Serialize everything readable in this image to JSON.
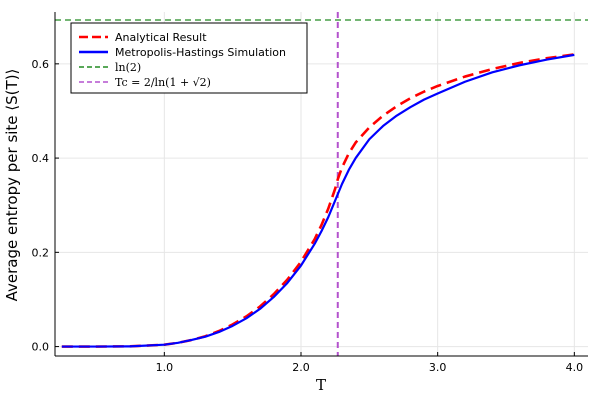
{
  "chart_data": {
    "type": "line",
    "xlabel": "T",
    "ylabel": "Average entropy per site ⟨S(T)⟩",
    "xlim": [
      0.2,
      4.1
    ],
    "ylim": [
      -0.02,
      0.71
    ],
    "xticks": [
      1.0,
      2.0,
      3.0,
      4.0
    ],
    "xtick_labels": [
      "1.0",
      "2.0",
      "3.0",
      "4.0"
    ],
    "yticks": [
      0.0,
      0.2,
      0.4,
      0.6
    ],
    "ytick_labels": [
      "0.0",
      "0.2",
      "0.4",
      "0.6"
    ],
    "grid": true,
    "legend_position": "top-left",
    "series": [
      {
        "name": "Analytical Result",
        "color": "#ff0000",
        "style": "dashed",
        "x": [
          0.25,
          0.5,
          0.75,
          1.0,
          1.1,
          1.2,
          1.3,
          1.4,
          1.5,
          1.6,
          1.7,
          1.8,
          1.9,
          2.0,
          2.1,
          2.15,
          2.2,
          2.25,
          2.269,
          2.3,
          2.35,
          2.4,
          2.5,
          2.6,
          2.7,
          2.8,
          2.9,
          3.0,
          3.2,
          3.4,
          3.6,
          3.8,
          4.0
        ],
        "y": [
          0.0,
          0.0,
          0.0005,
          0.004,
          0.008,
          0.014,
          0.022,
          0.033,
          0.047,
          0.064,
          0.085,
          0.111,
          0.142,
          0.18,
          0.228,
          0.258,
          0.293,
          0.335,
          0.355,
          0.38,
          0.41,
          0.433,
          0.465,
          0.49,
          0.51,
          0.527,
          0.541,
          0.553,
          0.573,
          0.589,
          0.602,
          0.612,
          0.62
        ]
      },
      {
        "name": "Metropolis-Hastings Simulation",
        "color": "#0000ff",
        "style": "solid",
        "x": [
          0.25,
          0.5,
          0.75,
          1.0,
          1.1,
          1.2,
          1.3,
          1.4,
          1.5,
          1.6,
          1.7,
          1.8,
          1.9,
          2.0,
          2.1,
          2.15,
          2.2,
          2.25,
          2.3,
          2.35,
          2.4,
          2.5,
          2.6,
          2.7,
          2.8,
          2.9,
          3.0,
          3.2,
          3.4,
          3.6,
          3.8,
          4.0
        ],
        "y": [
          0.0,
          0.0,
          0.0005,
          0.004,
          0.008,
          0.014,
          0.021,
          0.031,
          0.044,
          0.06,
          0.08,
          0.105,
          0.135,
          0.172,
          0.218,
          0.245,
          0.275,
          0.31,
          0.345,
          0.375,
          0.4,
          0.44,
          0.468,
          0.49,
          0.508,
          0.524,
          0.537,
          0.562,
          0.582,
          0.597,
          0.609,
          0.619
        ]
      }
    ],
    "reference_lines": [
      {
        "name": "ln(2)",
        "orientation": "horizontal",
        "value": 0.6931,
        "color": "#228b22",
        "style": "dashed"
      },
      {
        "name": "Tc = 2/ln(1+√2)",
        "orientation": "vertical",
        "value": 2.269,
        "color": "#b452cd",
        "style": "dashed"
      }
    ]
  },
  "legend": [
    {
      "label": "Analytical Result",
      "color": "#ff0000",
      "style": "dashed"
    },
    {
      "label": "Metropolis-Hastings Simulation",
      "color": "#0000ff",
      "style": "solid"
    },
    {
      "label": "ln(2)",
      "color": "#228b22",
      "style": "dashed"
    },
    {
      "label": "Tc = 2/ln(1 + √2)",
      "color": "#b452cd",
      "style": "dashed"
    }
  ]
}
